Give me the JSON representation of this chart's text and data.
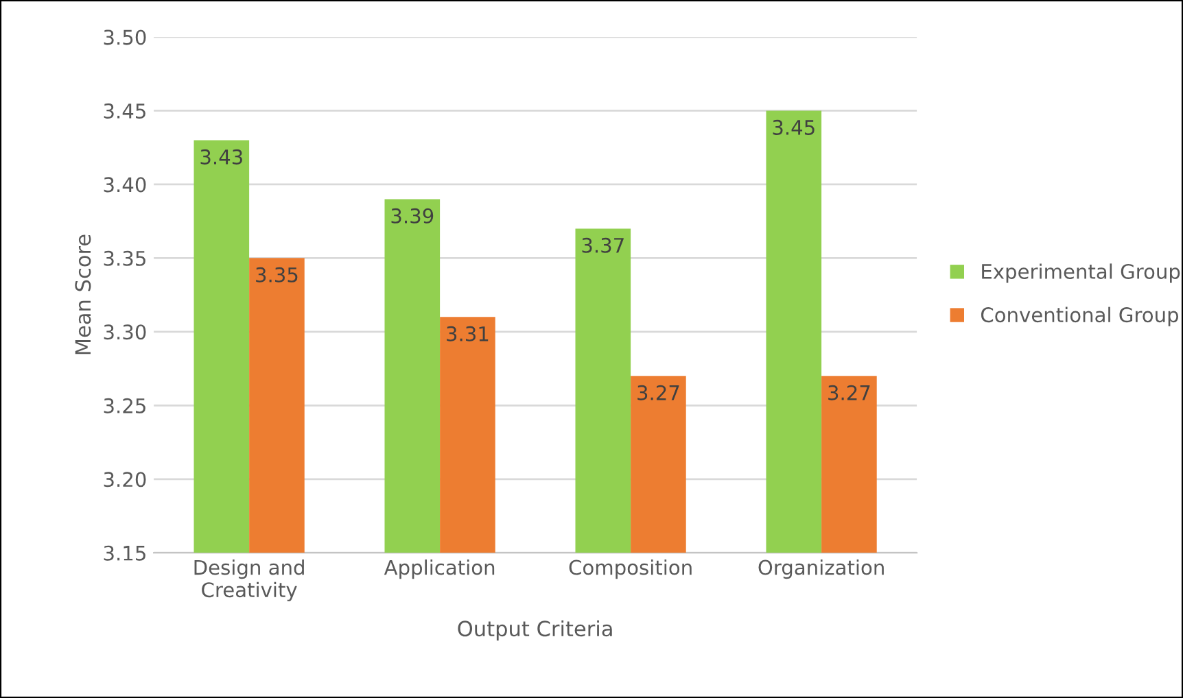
{
  "chart_data": {
    "type": "bar",
    "xlabel": "Output Criteria",
    "ylabel": "Mean Score",
    "categories": [
      "Design and\nCreativity",
      "Application",
      "Composition",
      "Organization"
    ],
    "series": [
      {
        "name": "Experimental Group",
        "color": "#92d050",
        "values": [
          3.43,
          3.39,
          3.37,
          3.45
        ]
      },
      {
        "name": "Conventional Group",
        "color": "#ed7d31",
        "values": [
          3.35,
          3.31,
          3.27,
          3.27
        ]
      }
    ],
    "ylim": [
      3.15,
      3.5
    ],
    "yticks": [
      "3.15",
      "3.20",
      "3.25",
      "3.30",
      "3.35",
      "3.40",
      "3.45",
      "3.50"
    ],
    "grid": "y",
    "legend": "right",
    "data_labels": true
  }
}
